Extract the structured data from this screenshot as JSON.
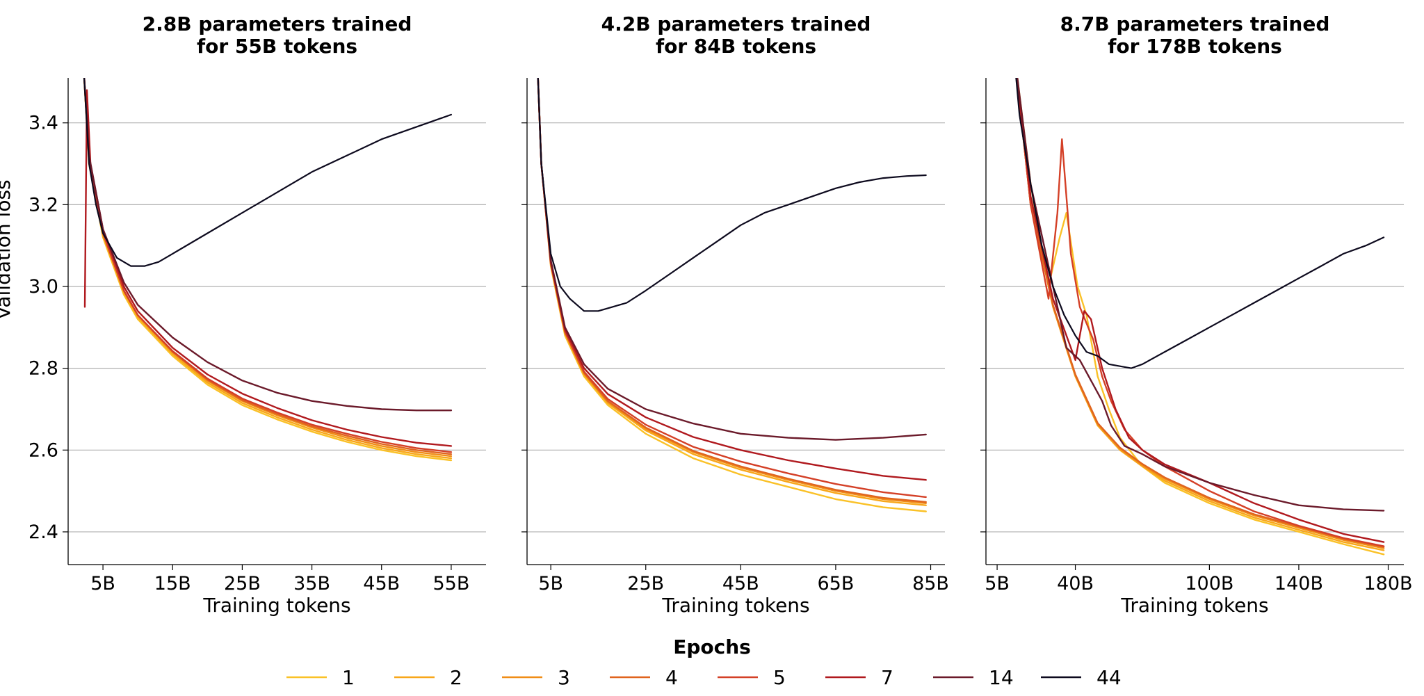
{
  "chart_data": {
    "type": "line",
    "ylabel": "Validation loss",
    "ylim": [
      2.32,
      3.51
    ],
    "yticks": [
      2.4,
      2.6,
      2.8,
      3.0,
      3.2,
      3.4
    ],
    "ytick_labels": [
      "2.4",
      "2.6",
      "2.8",
      "3.0",
      "3.2",
      "3.4"
    ],
    "legend": {
      "title": "Epochs",
      "placement": "bottom-center",
      "entries": [
        "1",
        "2",
        "3",
        "4",
        "5",
        "7",
        "14",
        "44"
      ]
    },
    "series_colors": {
      "1": "#fac127",
      "2": "#f8a71a",
      "3": "#f08d16",
      "4": "#e0641e",
      "5": "#d44027",
      "7": "#b0191e",
      "14": "#6b1a2a",
      "44": "#0d0a1e"
    },
    "panels": [
      {
        "title_line1": "2.8B parameters trained",
        "title_line2": "for 55B tokens",
        "xlabel": "Training tokens",
        "xlim": [
          0,
          60
        ],
        "xticks": [
          5,
          15,
          25,
          35,
          45,
          55
        ],
        "xtick_labels": [
          "5B",
          "15B",
          "25B",
          "35B",
          "45B",
          "55B"
        ],
        "series": [
          {
            "name": "1",
            "x": [
              2,
              3,
              5,
              8,
              10,
              15,
              20,
              25,
              30,
              35,
              40,
              45,
              50,
              55
            ],
            "y": [
              3.6,
              3.3,
              3.12,
              2.98,
              2.92,
              2.83,
              2.76,
              2.71,
              2.675,
              2.645,
              2.62,
              2.6,
              2.585,
              2.575
            ]
          },
          {
            "name": "2",
            "x": [
              2,
              3,
              5,
              8,
              10,
              15,
              20,
              25,
              30,
              35,
              40,
              45,
              50,
              55
            ],
            "y": [
              3.6,
              3.31,
              3.125,
              2.985,
              2.925,
              2.835,
              2.765,
              2.715,
              2.68,
              2.65,
              2.625,
              2.605,
              2.59,
              2.58
            ]
          },
          {
            "name": "3",
            "x": [
              2,
              3,
              5,
              8,
              10,
              15,
              20,
              25,
              30,
              35,
              40,
              45,
              50,
              55
            ],
            "y": [
              3.6,
              3.31,
              3.13,
              2.99,
              2.93,
              2.84,
              2.77,
              2.72,
              2.685,
              2.655,
              2.63,
              2.61,
              2.595,
              2.585
            ]
          },
          {
            "name": "4",
            "x": [
              2,
              3,
              5,
              8,
              10,
              15,
              20,
              25,
              30,
              35,
              40,
              45,
              50,
              55
            ],
            "y": [
              3.6,
              3.31,
              3.13,
              2.99,
              2.93,
              2.84,
              2.772,
              2.722,
              2.688,
              2.658,
              2.635,
              2.615,
              2.6,
              2.59
            ]
          },
          {
            "name": "5",
            "x": [
              2,
              3,
              5,
              8,
              10,
              15,
              20,
              25,
              30,
              35,
              40,
              45,
              50,
              55
            ],
            "y": [
              3.6,
              3.31,
              3.13,
              2.99,
              2.93,
              2.842,
              2.775,
              2.726,
              2.692,
              2.662,
              2.64,
              2.62,
              2.605,
              2.595
            ]
          },
          {
            "name": "7",
            "x": [
              2.4,
              2.7,
              3.2,
              5,
              8,
              10,
              15,
              20,
              25,
              30,
              35,
              40,
              45,
              50,
              55
            ],
            "y": [
              2.95,
              3.48,
              3.3,
              3.14,
              3.0,
              2.94,
              2.85,
              2.785,
              2.738,
              2.703,
              2.673,
              2.65,
              2.632,
              2.618,
              2.61
            ]
          },
          {
            "name": "14",
            "x": [
              2,
              3,
              5,
              8,
              10,
              15,
              20,
              25,
              30,
              35,
              40,
              45,
              50,
              55
            ],
            "y": [
              3.6,
              3.32,
              3.14,
              3.01,
              2.955,
              2.875,
              2.815,
              2.77,
              2.74,
              2.72,
              2.708,
              2.7,
              2.697,
              2.697
            ]
          },
          {
            "name": "44",
            "x": [
              2,
              3,
              4,
              5,
              7,
              9,
              11,
              13,
              15,
              20,
              25,
              30,
              35,
              40,
              45,
              50,
              55
            ],
            "y": [
              3.6,
              3.3,
              3.2,
              3.13,
              3.07,
              3.05,
              3.05,
              3.06,
              3.08,
              3.13,
              3.18,
              3.23,
              3.28,
              3.32,
              3.36,
              3.39,
              3.42
            ]
          }
        ]
      },
      {
        "title_line1": "4.2B parameters trained",
        "title_line2": "for 84B tokens",
        "xlabel": "Training tokens",
        "xlim": [
          0,
          88
        ],
        "xticks": [
          5,
          25,
          45,
          65,
          85
        ],
        "xtick_labels": [
          "5B",
          "25B",
          "45B",
          "65B",
          "85B"
        ],
        "series": [
          {
            "name": "1",
            "x": [
              2,
              3,
              5,
              8,
              12,
              17,
              25,
              35,
              45,
              55,
              65,
              75,
              84
            ],
            "y": [
              3.6,
              3.3,
              3.05,
              2.88,
              2.78,
              2.71,
              2.64,
              2.58,
              2.54,
              2.51,
              2.48,
              2.46,
              2.45
            ]
          },
          {
            "name": "2",
            "x": [
              2,
              3,
              5,
              8,
              12,
              17,
              25,
              35,
              45,
              55,
              65,
              75,
              84
            ],
            "y": [
              3.6,
              3.3,
              3.055,
              2.885,
              2.785,
              2.715,
              2.648,
              2.59,
              2.552,
              2.522,
              2.495,
              2.475,
              2.465
            ]
          },
          {
            "name": "3",
            "x": [
              2,
              3,
              5,
              8,
              12,
              17,
              25,
              35,
              45,
              55,
              65,
              75,
              84
            ],
            "y": [
              3.6,
              3.3,
              3.055,
              2.887,
              2.787,
              2.718,
              2.652,
              2.595,
              2.557,
              2.527,
              2.5,
              2.48,
              2.47
            ]
          },
          {
            "name": "4",
            "x": [
              2,
              3,
              5,
              8,
              12,
              17,
              25,
              35,
              45,
              55,
              65,
              75,
              84
            ],
            "y": [
              3.6,
              3.3,
              3.056,
              2.888,
              2.789,
              2.72,
              2.655,
              2.598,
              2.56,
              2.53,
              2.503,
              2.483,
              2.473
            ]
          },
          {
            "name": "5",
            "x": [
              2,
              3,
              5,
              8,
              12,
              17,
              25,
              35,
              45,
              55,
              65,
              75,
              84
            ],
            "y": [
              3.6,
              3.3,
              3.058,
              2.89,
              2.792,
              2.725,
              2.662,
              2.608,
              2.572,
              2.543,
              2.517,
              2.497,
              2.485
            ]
          },
          {
            "name": "7",
            "x": [
              2,
              3,
              5,
              8,
              12,
              17,
              25,
              35,
              45,
              55,
              65,
              75,
              84
            ],
            "y": [
              3.6,
              3.3,
              3.06,
              2.895,
              2.8,
              2.737,
              2.68,
              2.632,
              2.6,
              2.575,
              2.555,
              2.537,
              2.527
            ]
          },
          {
            "name": "14",
            "x": [
              2,
              3,
              5,
              8,
              12,
              17,
              25,
              35,
              45,
              55,
              65,
              75,
              84
            ],
            "y": [
              3.6,
              3.3,
              3.065,
              2.9,
              2.81,
              2.75,
              2.7,
              2.665,
              2.64,
              2.63,
              2.625,
              2.63,
              2.638
            ]
          },
          {
            "name": "44",
            "x": [
              2,
              3,
              5,
              7,
              9,
              12,
              15,
              18,
              21,
              25,
              30,
              35,
              40,
              45,
              50,
              55,
              60,
              65,
              70,
              75,
              80,
              84
            ],
            "y": [
              3.6,
              3.3,
              3.08,
              3.0,
              2.97,
              2.94,
              2.94,
              2.95,
              2.96,
              2.99,
              3.03,
              3.07,
              3.11,
              3.15,
              3.18,
              3.2,
              3.22,
              3.24,
              3.255,
              3.265,
              3.27,
              3.272
            ]
          }
        ]
      },
      {
        "title_line1": "8.7B parameters trained",
        "title_line2": "for 178B tokens",
        "xlabel": "Training tokens",
        "xlim": [
          0,
          187
        ],
        "xticks": [
          5,
          40,
          100,
          140,
          180
        ],
        "xtick_labels": [
          "5B",
          "40B",
          "100B",
          "140B",
          "180B"
        ],
        "series": [
          {
            "name": "1",
            "x": [
              12,
              20,
              28,
              33,
              36,
              41,
              45,
              50,
              55,
              60,
              70,
              80,
              100,
              120,
              140,
              160,
              178
            ],
            "y": [
              3.6,
              3.25,
              3.0,
              3.12,
              3.18,
              3.0,
              2.93,
              2.78,
              2.7,
              2.63,
              2.56,
              2.52,
              2.47,
              2.43,
              2.4,
              2.37,
              2.345
            ]
          },
          {
            "name": "2",
            "x": [
              12,
              20,
              30,
              40,
              50,
              60,
              70,
              80,
              100,
              120,
              140,
              160,
              178
            ],
            "y": [
              3.6,
              3.2,
              2.95,
              2.78,
              2.66,
              2.6,
              2.56,
              2.525,
              2.475,
              2.435,
              2.405,
              2.375,
              2.355
            ]
          },
          {
            "name": "3",
            "x": [
              12,
              20,
              30,
              40,
              50,
              60,
              70,
              80,
              100,
              120,
              140,
              160,
              178
            ],
            "y": [
              3.6,
              3.2,
              2.952,
              2.782,
              2.663,
              2.603,
              2.563,
              2.53,
              2.48,
              2.44,
              2.41,
              2.38,
              2.36
            ]
          },
          {
            "name": "4",
            "x": [
              12,
              20,
              30,
              40,
              50,
              60,
              70,
              80,
              100,
              120,
              140,
              160,
              178
            ],
            "y": [
              3.6,
              3.2,
              2.955,
              2.785,
              2.666,
              2.606,
              2.566,
              2.533,
              2.483,
              2.443,
              2.413,
              2.383,
              2.363
            ]
          },
          {
            "name": "5",
            "x": [
              12,
              20,
              28,
              32,
              34,
              38,
              42,
              48,
              52,
              56,
              62,
              70,
              80,
              100,
              120,
              140,
              160,
              178
            ],
            "y": [
              3.6,
              3.2,
              2.97,
              3.18,
              3.36,
              3.08,
              2.95,
              2.87,
              2.78,
              2.72,
              2.65,
              2.6,
              2.56,
              2.5,
              2.45,
              2.415,
              2.385,
              2.365
            ]
          },
          {
            "name": "7",
            "x": [
              12,
              20,
              30,
              40,
              44,
              47,
              52,
              58,
              64,
              70,
              80,
              100,
              120,
              140,
              160,
              178
            ],
            "y": [
              3.6,
              3.22,
              2.97,
              2.82,
              2.94,
              2.92,
              2.8,
              2.7,
              2.63,
              2.6,
              2.565,
              2.52,
              2.47,
              2.43,
              2.395,
              2.375
            ]
          },
          {
            "name": "14",
            "x": [
              12,
              20,
              30,
              36,
              42,
              48,
              52,
              56,
              62,
              70,
              80,
              100,
              120,
              140,
              160,
              178
            ],
            "y": [
              3.6,
              3.25,
              3.0,
              2.85,
              2.82,
              2.76,
              2.72,
              2.66,
              2.61,
              2.59,
              2.56,
              2.52,
              2.49,
              2.465,
              2.455,
              2.452
            ]
          },
          {
            "name": "44",
            "x": [
              12,
              15,
              20,
              25,
              30,
              35,
              40,
              45,
              50,
              55,
              60,
              65,
              70,
              80,
              90,
              100,
              110,
              120,
              130,
              140,
              150,
              160,
              170,
              178
            ],
            "y": [
              3.6,
              3.42,
              3.25,
              3.1,
              3.0,
              2.93,
              2.88,
              2.84,
              2.83,
              2.81,
              2.805,
              2.8,
              2.81,
              2.84,
              2.87,
              2.9,
              2.93,
              2.96,
              2.99,
              3.02,
              3.05,
              3.08,
              3.1,
              3.12
            ]
          }
        ]
      }
    ]
  }
}
